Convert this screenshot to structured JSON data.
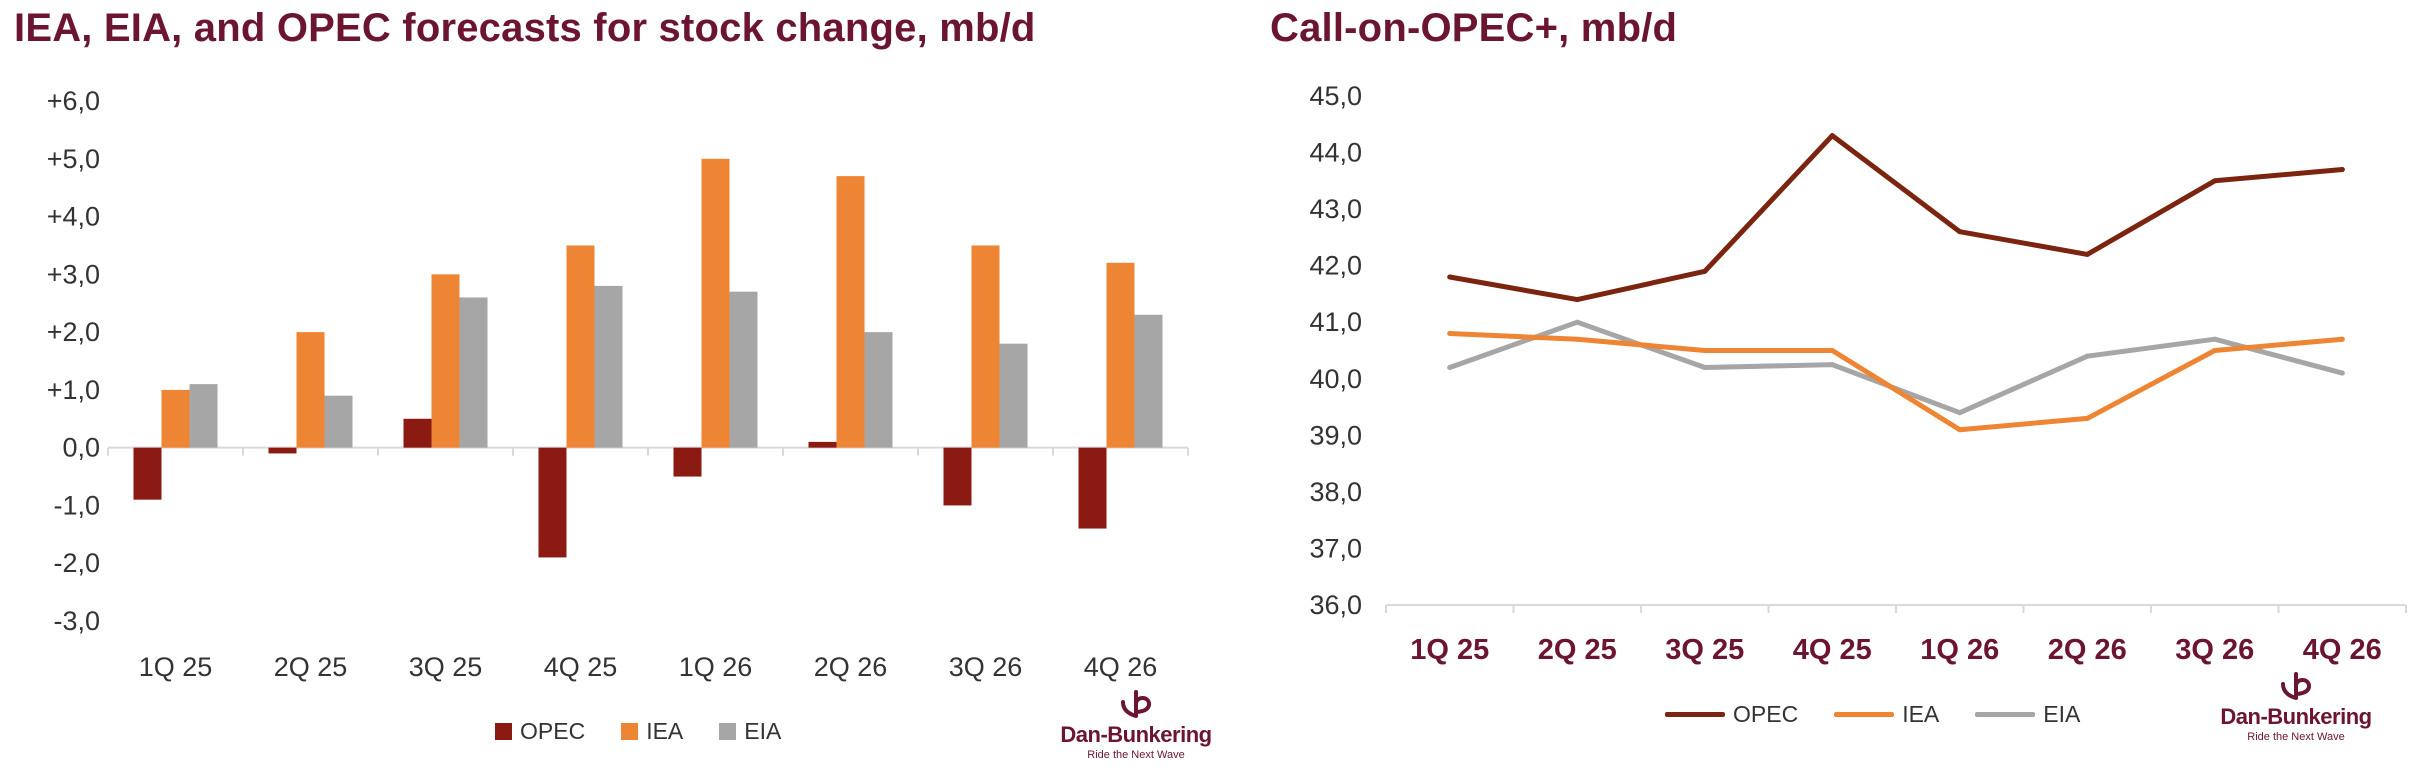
{
  "chart_data": [
    {
      "type": "bar",
      "title": "IEA, EIA, and OPEC forecasts for stock change, mb/d",
      "categories": [
        "1Q 25",
        "2Q 25",
        "3Q 25",
        "4Q 25",
        "1Q 26",
        "2Q 26",
        "3Q 26",
        "4Q 26"
      ],
      "series": [
        {
          "name": "OPEC",
          "color": "#8b1a12",
          "values": [
            -0.9,
            -0.1,
            0.5,
            -1.9,
            -0.5,
            0.1,
            -1.0,
            -1.4
          ]
        },
        {
          "name": "IEA",
          "color": "#ee8534",
          "values": [
            1.0,
            2.0,
            3.0,
            3.5,
            5.0,
            4.7,
            3.5,
            3.2
          ]
        },
        {
          "name": "EIA",
          "color": "#a6a6a6",
          "values": [
            1.1,
            0.9,
            2.6,
            2.8,
            2.7,
            2.0,
            1.8,
            2.3
          ]
        }
      ],
      "ylim": [
        -3,
        6
      ],
      "yticks": [
        "+6,0",
        "+5,0",
        "+4,0",
        "+3,0",
        "+2,0",
        "+1,0",
        "0,0",
        "-1,0",
        "-2,0",
        "-3,0"
      ],
      "xlabel": "",
      "ylabel": "",
      "legend_position": "bottom"
    },
    {
      "type": "line",
      "title": "Call-on-OPEC+, mb/d",
      "categories": [
        "1Q 25",
        "2Q 25",
        "3Q 25",
        "4Q 25",
        "1Q 26",
        "2Q 26",
        "3Q 26",
        "4Q 26"
      ],
      "series": [
        {
          "name": "OPEC",
          "color": "#7b2410",
          "values": [
            41.8,
            41.4,
            41.9,
            44.3,
            42.6,
            42.2,
            43.5,
            43.7
          ]
        },
        {
          "name": "IEA",
          "color": "#ee8534",
          "values": [
            40.8,
            40.7,
            40.5,
            40.5,
            39.1,
            39.3,
            40.5,
            40.7
          ]
        },
        {
          "name": "EIA",
          "color": "#a6a6a6",
          "values": [
            40.2,
            41.0,
            40.2,
            40.25,
            39.4,
            40.4,
            40.7,
            40.1
          ]
        }
      ],
      "ylim": [
        36,
        45
      ],
      "yticks": [
        "45,0",
        "44,0",
        "43,0",
        "42,0",
        "41,0",
        "40,0",
        "39,0",
        "38,0",
        "37,0",
        "36,0"
      ],
      "xlabel": "",
      "ylabel": "",
      "legend_position": "bottom"
    }
  ],
  "logo": {
    "name": "Dan-Bunkering",
    "tagline": "Ride the Next Wave"
  }
}
